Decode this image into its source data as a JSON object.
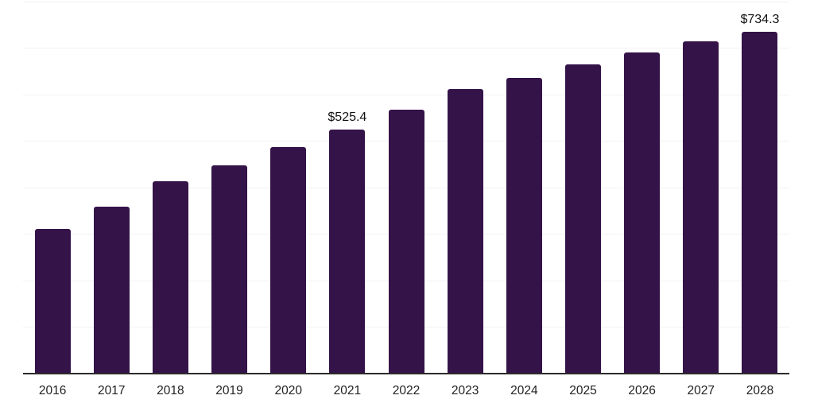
{
  "chart_data": {
    "type": "bar",
    "categories": [
      "2016",
      "2017",
      "2018",
      "2019",
      "2020",
      "2021",
      "2022",
      "2023",
      "2024",
      "2025",
      "2026",
      "2027",
      "2028"
    ],
    "values": [
      310.3,
      358.9,
      414.3,
      448.4,
      486.8,
      525.4,
      566.9,
      612.1,
      636.0,
      665.0,
      690.5,
      714.4,
      734.3
    ],
    "labeled_points": [
      {
        "category": "2021",
        "text": "$525.4"
      },
      {
        "category": "2028",
        "text": "$734.3"
      }
    ],
    "title": "",
    "xlabel": "",
    "ylabel": "",
    "ylim": [
      0,
      800
    ],
    "gridline_step": 100,
    "grid": "horizontal-only",
    "legend": "none",
    "y_tick_labels_visible": false
  },
  "colors": {
    "bar": "#341349",
    "axis_line": "#2b2b2b",
    "gridline": "#f2f2f2",
    "tick_label": "#222222",
    "data_label": "#111111",
    "background": "#ffffff"
  }
}
